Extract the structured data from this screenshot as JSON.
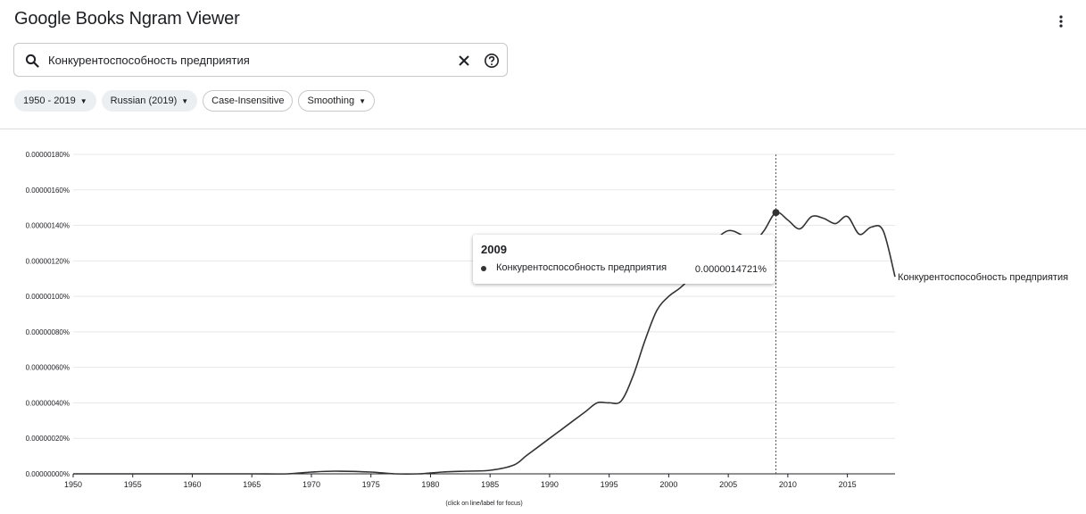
{
  "header": {
    "title": "Google Books Ngram Viewer"
  },
  "search": {
    "value": "Конкурентоспособность предприятия"
  },
  "chips": [
    {
      "label": "1950 - 2019",
      "dropdown": true,
      "style": "filled"
    },
    {
      "label": "Russian (2019)",
      "dropdown": true,
      "style": "filled"
    },
    {
      "label": "Case-Insensitive",
      "dropdown": false,
      "style": "outlined"
    },
    {
      "label": "Smoothing",
      "dropdown": true,
      "style": "outlined"
    }
  ],
  "icons": {
    "search": "search-icon",
    "clear": "close-icon",
    "help": "help-icon",
    "menu": "more-vert-icon"
  },
  "tooltip": {
    "year": "2009",
    "series": "Конкурентоспособность предприятия",
    "value": "0.0000014721%"
  },
  "chart_data": {
    "type": "line",
    "x_range": [
      1950,
      2019
    ],
    "y_range": [
      0,
      1.8e-08
    ],
    "x_ticks": [
      1950,
      1955,
      1960,
      1965,
      1970,
      1975,
      1980,
      1985,
      1990,
      1995,
      2000,
      2005,
      2010,
      2015
    ],
    "y_ticks": [
      "0.00000000%",
      "0.00000020%",
      "0.00000040%",
      "0.00000060%",
      "0.00000080%",
      "0.00000100%",
      "0.00000120%",
      "0.00000140%",
      "0.00000160%",
      "0.00000180%"
    ],
    "grid": true,
    "focus_year": 2009,
    "footnote": "(click on line/label for focus)",
    "series": [
      {
        "name": "Конкурентоспособность предприятия",
        "color": "#333333",
        "points": [
          [
            1950,
            0
          ],
          [
            1955,
            0
          ],
          [
            1960,
            0
          ],
          [
            1965,
            0
          ],
          [
            1968,
            0
          ],
          [
            1970,
            1e-10
          ],
          [
            1972,
            1.5e-10
          ],
          [
            1975,
            1e-10
          ],
          [
            1977,
            0
          ],
          [
            1979,
            0
          ],
          [
            1981,
            1e-10
          ],
          [
            1983,
            1.5e-10
          ],
          [
            1985,
            2e-10
          ],
          [
            1987,
            5e-10
          ],
          [
            1988,
            1e-09
          ],
          [
            1989,
            1.5e-09
          ],
          [
            1990,
            2e-09
          ],
          [
            1991,
            2.5e-09
          ],
          [
            1992,
            3e-09
          ],
          [
            1993,
            3.5e-09
          ],
          [
            1994,
            4e-09
          ],
          [
            1995,
            4e-09
          ],
          [
            1996,
            4.1e-09
          ],
          [
            1997,
            5.5e-09
          ],
          [
            1998,
            7.5e-09
          ],
          [
            1999,
            9.2e-09
          ],
          [
            2000,
            1e-08
          ],
          [
            2001,
            1.05e-08
          ],
          [
            2002,
            1.12e-08
          ],
          [
            2003,
            1.22e-08
          ],
          [
            2004,
            1.32e-08
          ],
          [
            2005,
            1.37e-08
          ],
          [
            2006,
            1.35e-08
          ],
          [
            2007,
            1.3e-08
          ],
          [
            2008,
            1.37e-08
          ],
          [
            2009,
            1.4721e-08
          ],
          [
            2010,
            1.43e-08
          ],
          [
            2011,
            1.38e-08
          ],
          [
            2012,
            1.45e-08
          ],
          [
            2013,
            1.44e-08
          ],
          [
            2014,
            1.41e-08
          ],
          [
            2015,
            1.45e-08
          ],
          [
            2016,
            1.35e-08
          ],
          [
            2017,
            1.39e-08
          ],
          [
            2018,
            1.37e-08
          ],
          [
            2019,
            1.11e-08
          ]
        ]
      }
    ]
  }
}
